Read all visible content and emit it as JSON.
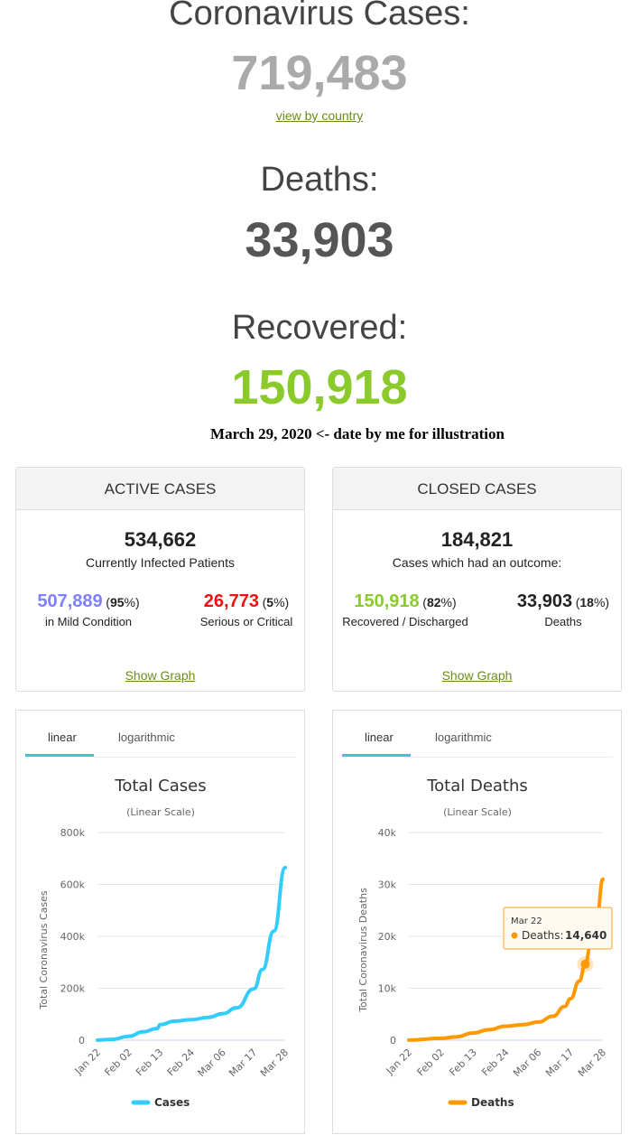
{
  "header": {
    "cases_label": "Coronavirus Cases:",
    "cases_value": "719,483",
    "view_by_country": "view by country",
    "deaths_label": "Deaths:",
    "deaths_value": "33,903",
    "recovered_label": "Recovered:",
    "recovered_value": "150,918",
    "date_note": "March 29, 2020  <- date by me for illustration"
  },
  "colors": {
    "cases_gray": "#aaaaaa",
    "deaths_gray": "#555555",
    "recovered_green": "#8aca2b",
    "mild_purple": "#8080ff",
    "critical_red": "#ee1111",
    "cases_line": "#33ccff",
    "deaths_line": "#ff9900"
  },
  "active": {
    "title": "ACTIVE CASES",
    "total": "534,662",
    "total_label": "Currently Infected Patients",
    "mild_value": "507,889",
    "mild_pct": "95",
    "mild_label": "in Mild Condition",
    "critical_value": "26,773",
    "critical_pct": "5",
    "critical_label": "Serious or Critical",
    "show_graph": "Show Graph"
  },
  "closed": {
    "title": "CLOSED CASES",
    "total": "184,821",
    "total_label": "Cases which had an outcome:",
    "recovered_value": "150,918",
    "recovered_pct": "82",
    "recovered_label": "Recovered / Discharged",
    "deaths_value": "33,903",
    "deaths_pct": "18",
    "deaths_label": "Deaths",
    "show_graph": "Show Graph"
  },
  "chart_data": [
    {
      "type": "line",
      "tabs": [
        "linear",
        "logarithmic"
      ],
      "active_tab": "linear",
      "title": "Total Cases",
      "subtitle": "(Linear Scale)",
      "ylabel": "Total Coronavirus Cases",
      "ylim": [
        0,
        800000
      ],
      "yticks": [
        "0",
        "200k",
        "400k",
        "600k",
        "800k"
      ],
      "ytick_values": [
        0,
        200000,
        400000,
        600000,
        800000
      ],
      "xticks": [
        "Jan 22",
        "Feb 02",
        "Feb 13",
        "Feb 24",
        "Mar 06",
        "Mar 17",
        "Mar 28"
      ],
      "legend": "Cases",
      "color": "#33ccff",
      "x": [
        "Jan 22",
        "Jan 27",
        "Feb 02",
        "Feb 07",
        "Feb 12",
        "Feb 13",
        "Feb 18",
        "Feb 24",
        "Mar 01",
        "Mar 06",
        "Mar 11",
        "Mar 17",
        "Mar 20",
        "Mar 24",
        "Mar 28"
      ],
      "values": [
        550,
        3000,
        15000,
        32000,
        45000,
        60000,
        73000,
        79000,
        88000,
        102000,
        125000,
        198000,
        272000,
        420000,
        665000
      ]
    },
    {
      "type": "line",
      "tabs": [
        "linear",
        "logarithmic"
      ],
      "active_tab": "linear",
      "title": "Total Deaths",
      "subtitle": "(Linear Scale)",
      "ylabel": "Total Coronavirus Deaths",
      "ylim": [
        0,
        40000
      ],
      "yticks": [
        "0",
        "10k",
        "20k",
        "30k",
        "40k"
      ],
      "ytick_values": [
        0,
        10000,
        20000,
        30000,
        40000
      ],
      "xticks": [
        "Jan 22",
        "Feb 02",
        "Feb 13",
        "Feb 24",
        "Mar 06",
        "Mar 17",
        "Mar 28"
      ],
      "legend": "Deaths",
      "color": "#ff9900",
      "x": [
        "Jan 22",
        "Feb 02",
        "Feb 07",
        "Feb 13",
        "Feb 18",
        "Feb 24",
        "Mar 01",
        "Mar 06",
        "Mar 11",
        "Mar 15",
        "Mar 17",
        "Mar 20",
        "Mar 22",
        "Mar 24",
        "Mar 26",
        "Mar 28"
      ],
      "values": [
        17,
        360,
        640,
        1400,
        2000,
        2700,
        3000,
        3500,
        4600,
        6500,
        8000,
        11400,
        14640,
        19000,
        24000,
        31000
      ],
      "tooltip": {
        "date": "Mar 22",
        "label": "Deaths:",
        "value": "14,640"
      }
    }
  ]
}
